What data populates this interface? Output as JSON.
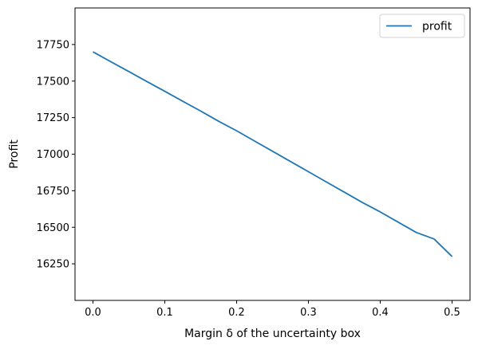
{
  "chart_data": {
    "type": "line",
    "xlabel": "Margin δ of the uncertainty box",
    "ylabel": "Profit",
    "xlim": [
      -0.025,
      0.525
    ],
    "ylim": [
      16000,
      18000
    ],
    "xticks": [
      0.0,
      0.1,
      0.2,
      0.3,
      0.4,
      0.5
    ],
    "xtick_labels": [
      "0.0",
      "0.1",
      "0.2",
      "0.3",
      "0.4",
      "0.5"
    ],
    "yticks": [
      16250,
      16500,
      16750,
      17000,
      17250,
      17500,
      17750
    ],
    "ytick_labels": [
      "16250",
      "16500",
      "16750",
      "17000",
      "17250",
      "17500",
      "17750"
    ],
    "grid": false,
    "legend_position": "top-right",
    "series": [
      {
        "name": "profit",
        "color": "#1f77b4",
        "x": [
          0.0,
          0.025,
          0.05,
          0.075,
          0.1,
          0.125,
          0.15,
          0.175,
          0.2,
          0.225,
          0.25,
          0.275,
          0.3,
          0.325,
          0.35,
          0.375,
          0.4,
          0.425,
          0.45,
          0.475,
          0.5
        ],
        "y": [
          17700,
          17632,
          17565,
          17497,
          17430,
          17362,
          17295,
          17225,
          17160,
          17090,
          17020,
          16950,
          16880,
          16810,
          16740,
          16670,
          16605,
          16535,
          16465,
          16420,
          16300
        ]
      }
    ]
  }
}
